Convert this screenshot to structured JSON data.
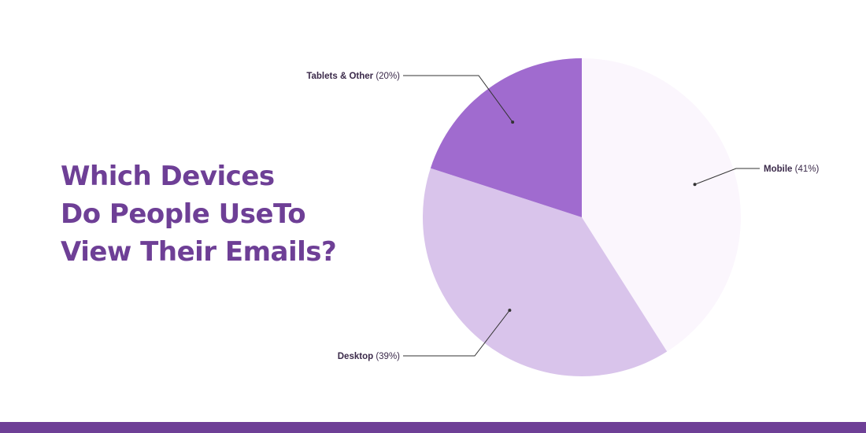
{
  "title_lines": [
    "Which Devices",
    "Do People UseTo",
    "View Their Emails?"
  ],
  "colors": {
    "title": "#6e3f96",
    "bottom_bar": "#6e3f96",
    "leader_line": "#333333",
    "label_text": "#3b2a4a"
  },
  "chart_data": {
    "type": "pie",
    "title": "Which Devices Do People UseTo View Their Emails?",
    "slices": [
      {
        "label": "Mobile",
        "value": 41,
        "value_label": "(41%)",
        "color": "#fbf6fd"
      },
      {
        "label": "Desktop",
        "value": 39,
        "value_label": "(39%)",
        "color": "#d9c4eb"
      },
      {
        "label": "Tablets & Other",
        "value": 20,
        "value_label": "(20%)",
        "color": "#a06bcf"
      }
    ],
    "start_angle_deg": 0,
    "direction": "clockwise",
    "legend": "none"
  }
}
